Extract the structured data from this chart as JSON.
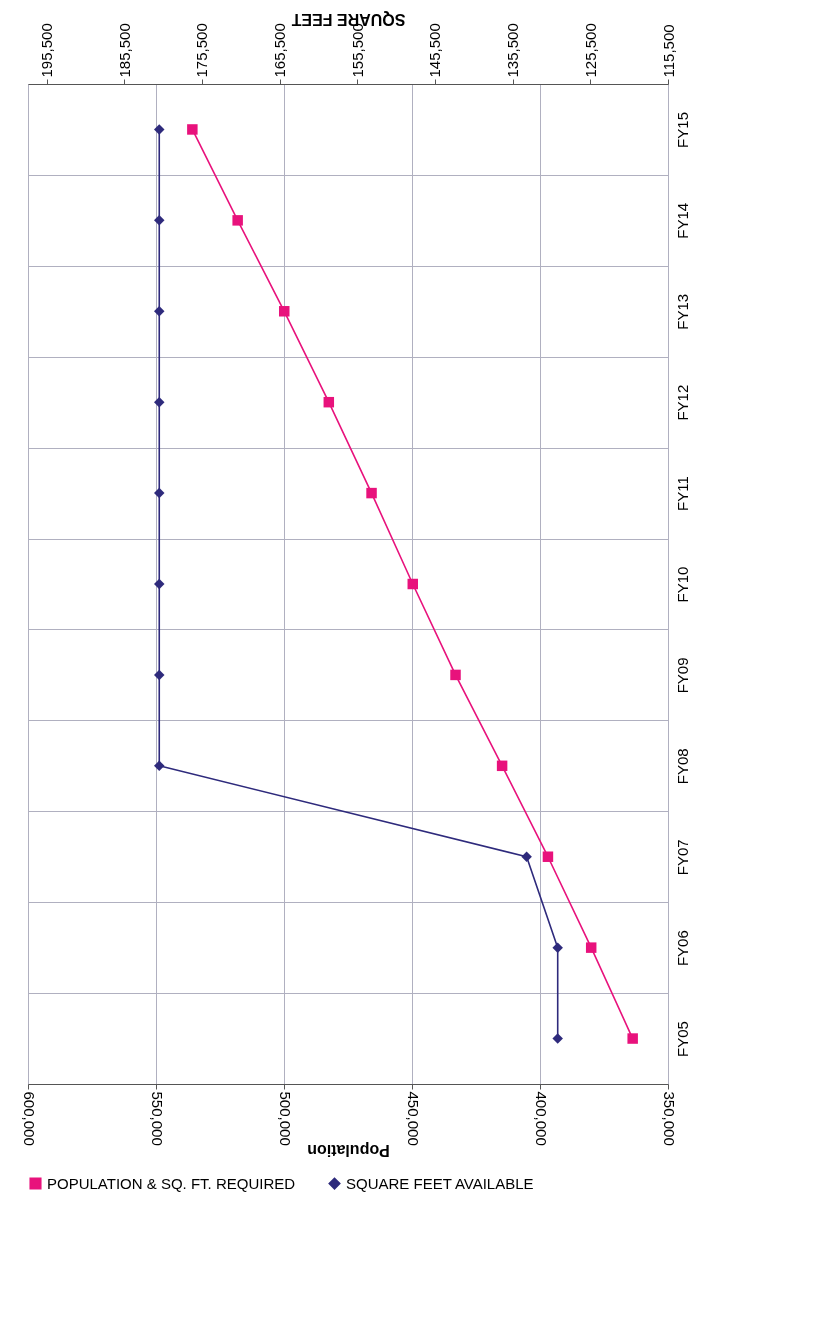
{
  "chart_data": {
    "type": "line",
    "orientation": "horizontal",
    "categories": [
      "FY15",
      "FY14",
      "FY13",
      "FY12",
      "FY11",
      "FY10",
      "FY09",
      "FY08",
      "FY07",
      "FY06",
      "FY05"
    ],
    "series": [
      {
        "name": "POPULATION & SQ. FT. REQUIRED",
        "color": "#e8127c",
        "marker": "square",
        "values": [
          535800,
          518100,
          499900,
          482500,
          465800,
          449700,
          433000,
          414800,
          396900,
          380000,
          363800
        ]
      },
      {
        "name": "SQUARE FEET AVAILABLE",
        "color": "#2e2a7c",
        "marker": "diamond",
        "axis": "x2",
        "values": [
          181000,
          181000,
          181000,
          181000,
          181000,
          181000,
          181000,
          181000,
          133700,
          129700,
          129700
        ]
      }
    ],
    "xlabel": "Population",
    "x2label": "SQUARE FEET",
    "xlim": [
      600000,
      350000
    ],
    "xticks": [
      {
        "value": 600000,
        "label": "600,000"
      },
      {
        "value": 550000,
        "label": "550,000"
      },
      {
        "value": 500000,
        "label": "500,000"
      },
      {
        "value": 450000,
        "label": "450,000"
      },
      {
        "value": 400000,
        "label": "400,000"
      },
      {
        "value": 350000,
        "label": "350,000"
      }
    ],
    "x2lim": [
      197900,
      115500
    ],
    "x2ticks": [
      {
        "value": 195500,
        "label": "195,500"
      },
      {
        "value": 185500,
        "label": "185,500"
      },
      {
        "value": 175500,
        "label": "175,500"
      },
      {
        "value": 165500,
        "label": "165,500"
      },
      {
        "value": 155500,
        "label": "155,500"
      },
      {
        "value": 145500,
        "label": "145,500"
      },
      {
        "value": 135500,
        "label": "135,500"
      },
      {
        "value": 125500,
        "label": "125,500"
      },
      {
        "value": 115500,
        "label": "115,500"
      }
    ],
    "grid": true,
    "legend": "bottom",
    "line_style": "solid"
  }
}
